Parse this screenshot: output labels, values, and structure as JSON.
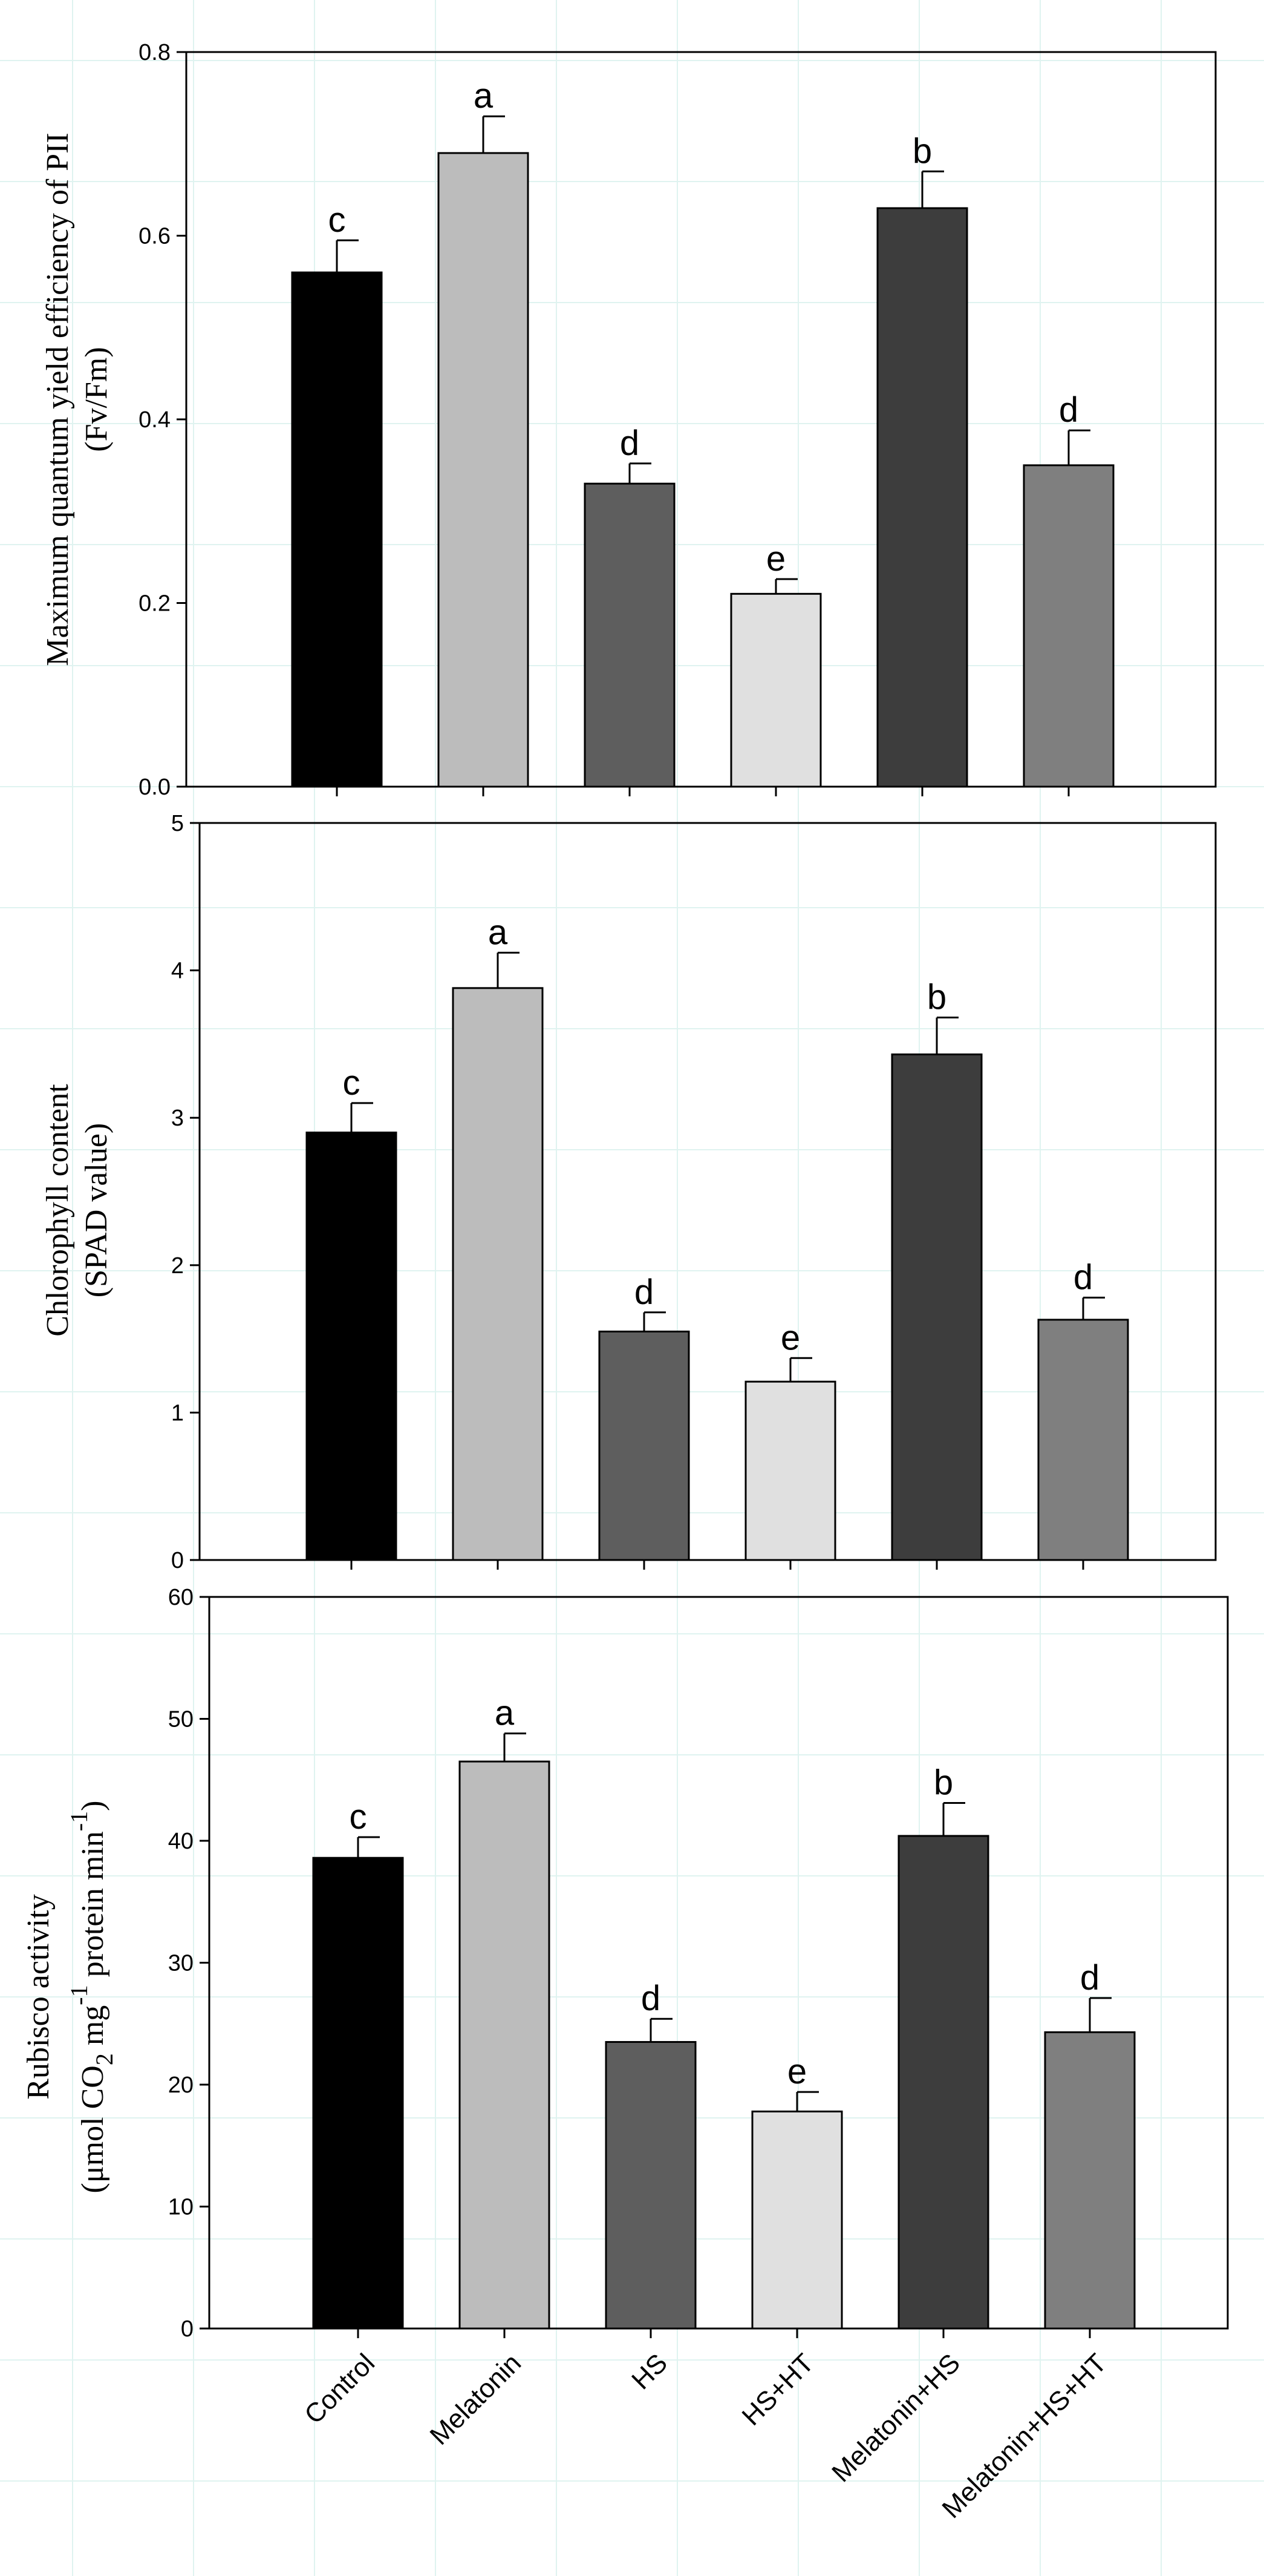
{
  "categories": [
    "Control",
    "Melatonin",
    "HS",
    "HS+HT",
    "Melatonin+HS",
    "Melatonin+HS+HT"
  ],
  "colors": {
    "bars": [
      "#000000",
      "#bcbcbc",
      "#5e5e5e",
      "#e0e0e0",
      "#3d3d3d",
      "#7f7f7f"
    ],
    "background_grid": "#dff3f0"
  },
  "chart_data": [
    {
      "type": "bar",
      "title": "",
      "ylabel_line1": "Maximum quantum yield efficiency of PII",
      "ylabel_line2": "(Fv/Fm)",
      "ylim": [
        0,
        0.8
      ],
      "yticks": [
        0.0,
        0.2,
        0.4,
        0.6,
        0.8
      ],
      "ytick_labels": [
        "0.0",
        "0.2",
        "0.4",
        "0.6",
        "0.8"
      ],
      "values": [
        0.56,
        0.69,
        0.33,
        0.21,
        0.63,
        0.35
      ],
      "errors": [
        0.035,
        0.04,
        0.022,
        0.016,
        0.04,
        0.038
      ],
      "letters": [
        "c",
        "a",
        "d",
        "e",
        "b",
        "d"
      ]
    },
    {
      "type": "bar",
      "title": "",
      "ylabel_line1": "Chlorophyll content",
      "ylabel_line2": "(SPAD value)",
      "ylim": [
        0,
        5
      ],
      "yticks": [
        0,
        1,
        2,
        3,
        4,
        5
      ],
      "ytick_labels": [
        "0",
        "1",
        "2",
        "3",
        "4",
        "5"
      ],
      "values": [
        2.9,
        3.88,
        1.55,
        1.21,
        3.43,
        1.63
      ],
      "errors": [
        0.2,
        0.24,
        0.13,
        0.16,
        0.25,
        0.15
      ],
      "letters": [
        "c",
        "a",
        "d",
        "e",
        "b",
        "d"
      ]
    },
    {
      "type": "bar",
      "title": "",
      "ylabel_line1": "Rubisco activity",
      "ylabel_line2_parts": [
        "(μmol CO",
        "2",
        " mg",
        "-1",
        " protein min",
        "-1",
        ")"
      ],
      "ylim": [
        0,
        60
      ],
      "yticks": [
        0,
        10,
        20,
        30,
        40,
        50,
        60
      ],
      "ytick_labels": [
        "0",
        "10",
        "20",
        "30",
        "40",
        "50",
        "60"
      ],
      "values": [
        38.6,
        46.5,
        23.5,
        17.8,
        40.4,
        24.3
      ],
      "errors": [
        1.7,
        2.3,
        1.9,
        1.6,
        2.7,
        2.8
      ],
      "letters": [
        "c",
        "a",
        "d",
        "e",
        "b",
        "d"
      ]
    }
  ]
}
